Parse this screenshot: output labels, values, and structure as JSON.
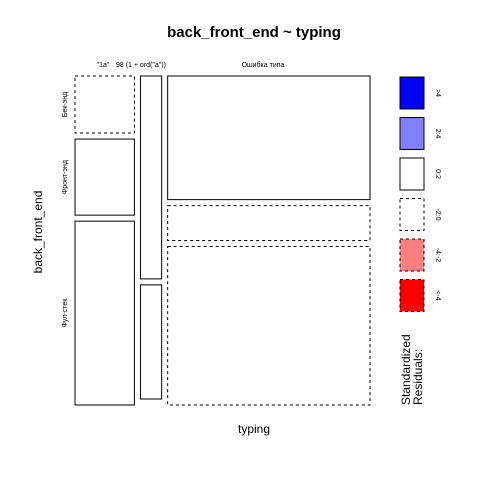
{
  "chart_data": {
    "type": "mosaic",
    "title": "back_front_end ~ typing",
    "xlabel": "typing",
    "ylabel": "back_front_end",
    "columns": [
      "\"1a\"",
      "98 (1 + ord(\"a\"))",
      "Ошибка типа"
    ],
    "rows": [
      "Бек-энд",
      "Фронт-энд",
      "Фул-стек"
    ],
    "column_proportions": [
      0.21,
      0.075,
      0.715
    ],
    "cells": [
      {
        "column": "\"1a\"",
        "row": "Бек-энд",
        "proportion": 0.18,
        "residual_class": "-2:0"
      },
      {
        "column": "\"1a\"",
        "row": "Фронт-энд",
        "proportion": 0.24,
        "residual_class": "0:2"
      },
      {
        "column": "\"1a\"",
        "row": "Фул-стек",
        "proportion": 0.58,
        "residual_class": "0:2"
      },
      {
        "column": "98 (1 + ord(\"a\"))",
        "row": "Бек-энд",
        "proportion": 0.0,
        "residual_class": "0:2"
      },
      {
        "column": "98 (1 + ord(\"a\"))",
        "row": "Фронт-энд",
        "proportion": 0.64,
        "residual_class": "0:2"
      },
      {
        "column": "98 (1 + ord(\"a\"))",
        "row": "Фул-стек",
        "proportion": 0.36,
        "residual_class": "0:2"
      },
      {
        "column": "Ошибка типа",
        "row": "Бек-энд",
        "proportion": 0.39,
        "residual_class": "0:2"
      },
      {
        "column": "Ошибка типа",
        "row": "Фронт-энд",
        "proportion": 0.11,
        "residual_class": "-2:0"
      },
      {
        "column": "Ошибка типа",
        "row": "Фул-стек",
        "proportion": 0.5,
        "residual_class": "-2:0"
      }
    ],
    "legend": {
      "title": [
        "Standardized",
        "Residuals:"
      ],
      "position": "right",
      "items": [
        {
          "label": ">4",
          "color": "#0000ff",
          "dashed": false
        },
        {
          "label": "2:4",
          "color": "#8080ff",
          "dashed": false
        },
        {
          "label": "0:2",
          "color": "#ffffff",
          "dashed": false
        },
        {
          "label": "-2:0",
          "color": "#ffffff",
          "dashed": true
        },
        {
          "label": "-4:-2",
          "color": "#ff8080",
          "dashed": true
        },
        {
          "label": "<-4",
          "color": "#ff0000",
          "dashed": true
        }
      ]
    }
  }
}
